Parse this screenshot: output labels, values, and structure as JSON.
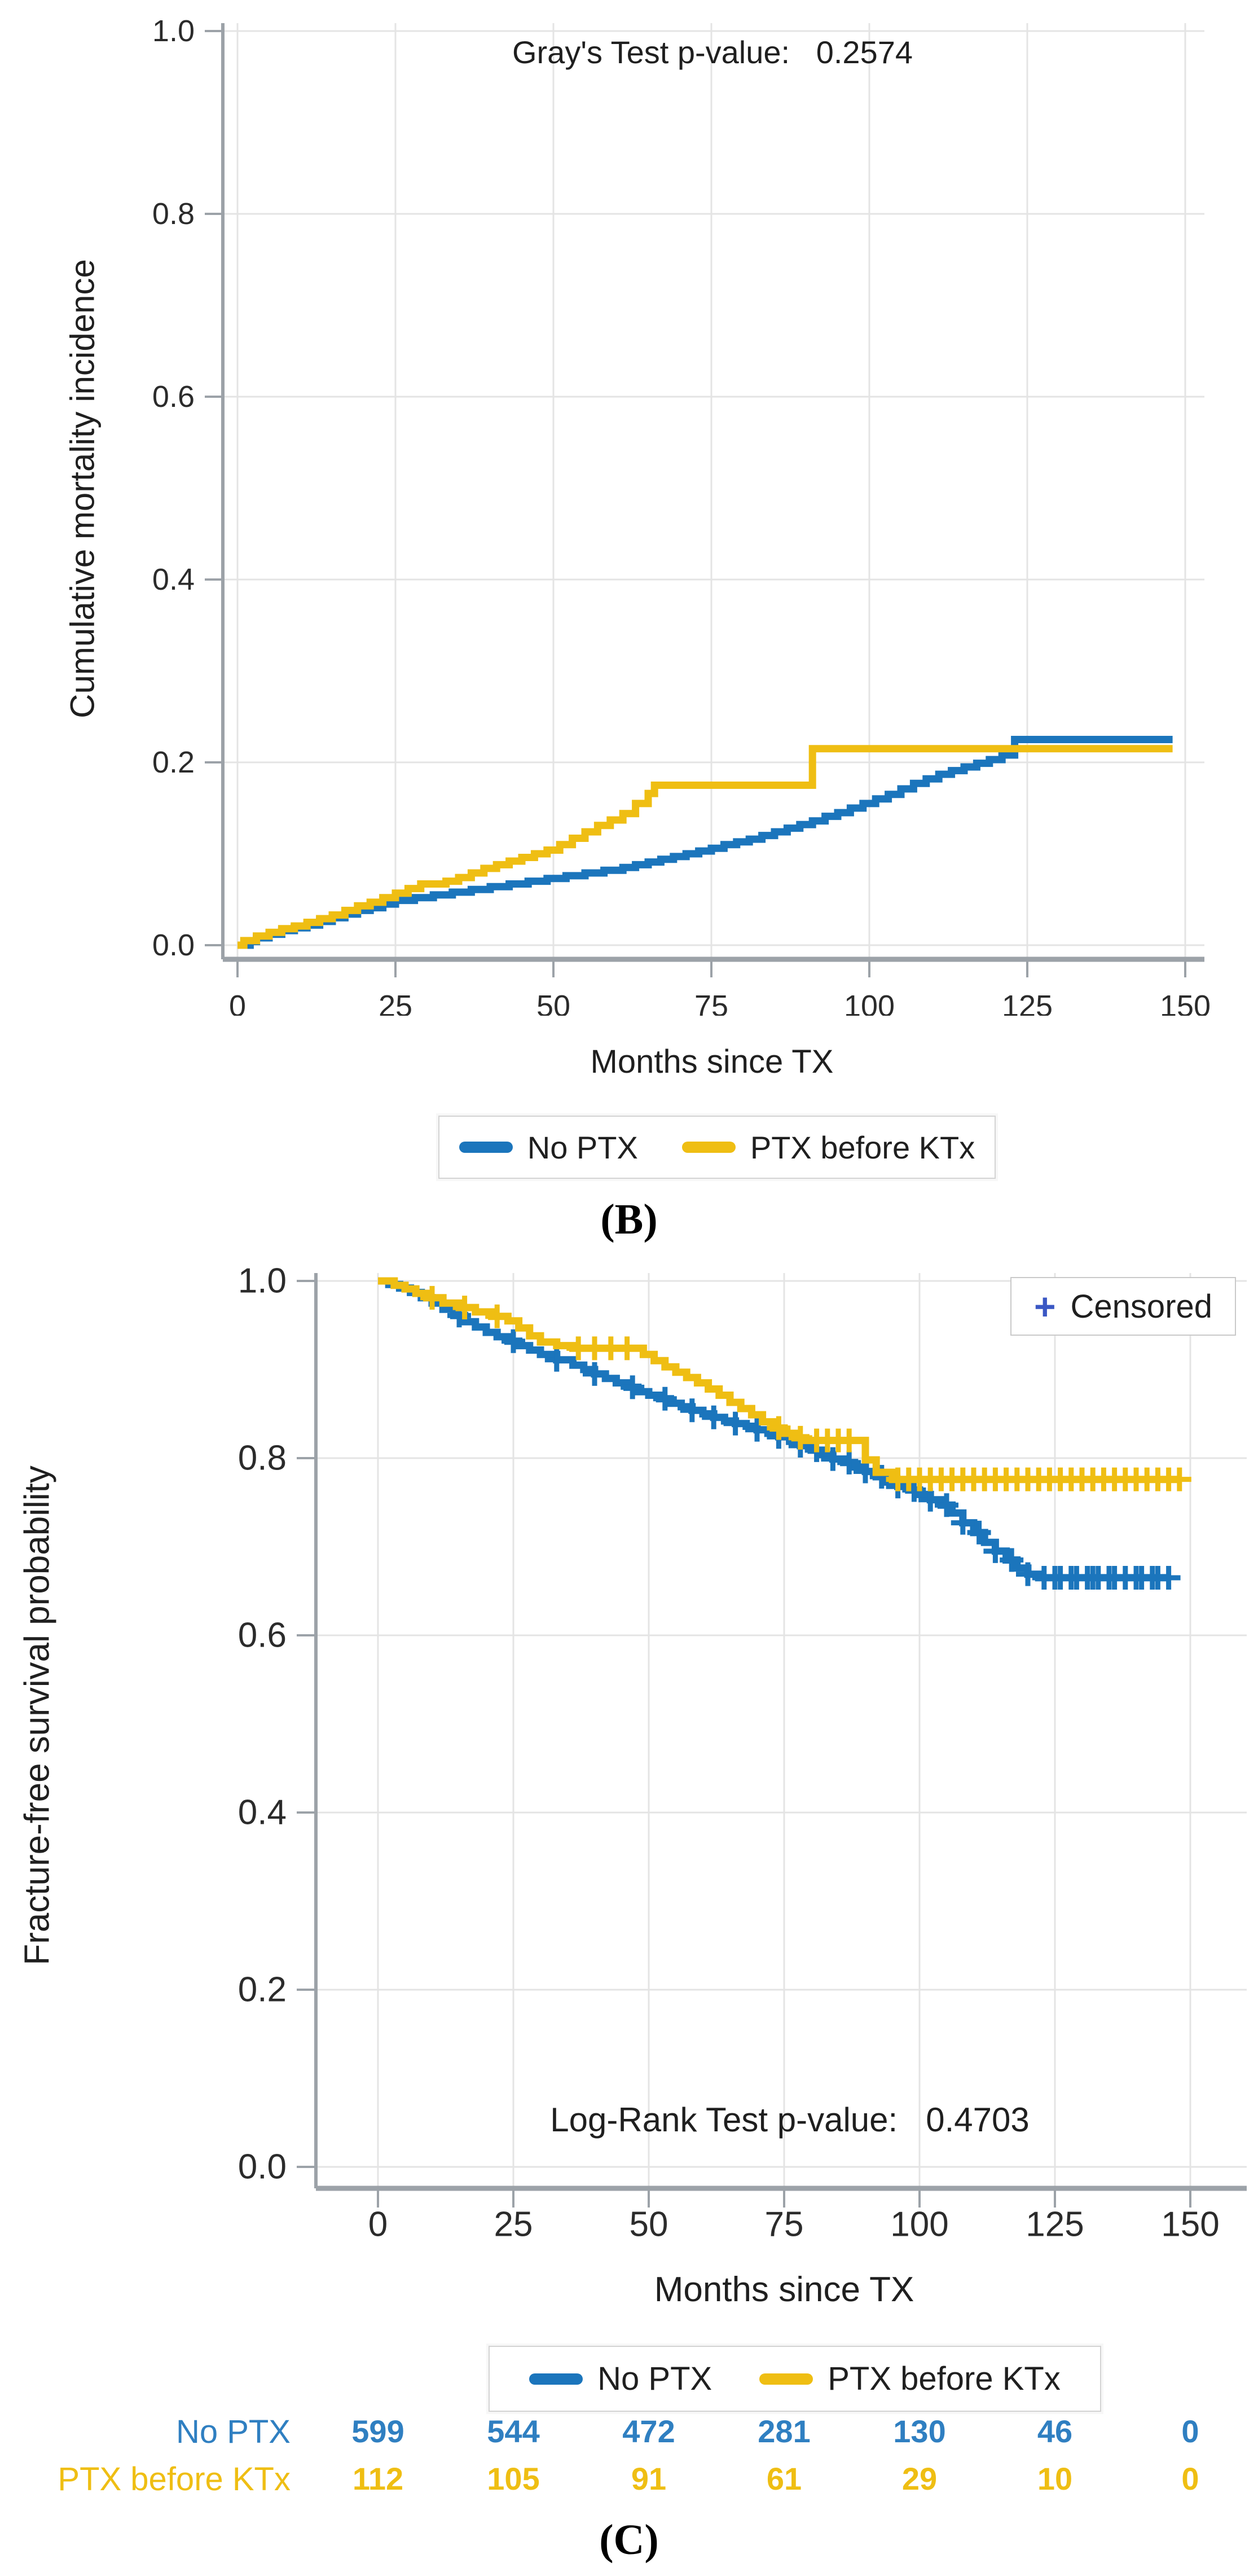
{
  "panel_b": {
    "pvalue_text": "Gray's Test p-value:   0.2574",
    "ylabel": "Cumulative mortality incidence",
    "xlabel": "Months since TX",
    "caption": "(B)",
    "legend": {
      "series1": "No PTX",
      "series2": "PTX before KTx"
    }
  },
  "panel_c": {
    "censored_marker": "+",
    "censored_label": "Censored",
    "pvalue_text": "Log-Rank Test p-value:   0.4703",
    "ylabel": "Fracture-free survival probability",
    "xlabel": "Months since TX",
    "caption": "(C)",
    "legend": {
      "series1": "No PTX",
      "series2": "PTX before KTx"
    }
  },
  "colors": {
    "no_ptx": "#1B75BC",
    "ptx_before_ktx": "#EFBE13",
    "censor_legend_plus": "#3A57C4",
    "grid": "#E4E4E4",
    "axis": "#9CA2A8",
    "tick_text": "#2b2b2b"
  },
  "chart_data": [
    {
      "id": "panel_b",
      "type": "line",
      "subtype": "step-cumulative-incidence",
      "title": "Gray's Test p-value: 0.2574",
      "xlabel": "Months since TX",
      "ylabel": "Cumulative mortality incidence",
      "xlim": [
        0,
        150
      ],
      "ylim": [
        0.0,
        1.0
      ],
      "xticks": [
        0,
        25,
        50,
        75,
        100,
        125,
        150
      ],
      "yticks": [
        "0.0",
        "0.2",
        "0.4",
        "0.6",
        "0.8",
        "1.0"
      ],
      "grid": true,
      "legend_position": "bottom",
      "series": [
        {
          "name": "No PTX",
          "color": "#1B75BC",
          "steps": [
            [
              0,
              0
            ],
            [
              2,
              0.004
            ],
            [
              3,
              0.008
            ],
            [
              5,
              0.012
            ],
            [
              7,
              0.016
            ],
            [
              9,
              0.019
            ],
            [
              11,
              0.022
            ],
            [
              13,
              0.026
            ],
            [
              15,
              0.03
            ],
            [
              17,
              0.034
            ],
            [
              19,
              0.038
            ],
            [
              21,
              0.041
            ],
            [
              23,
              0.045
            ],
            [
              25,
              0.049
            ],
            [
              28,
              0.052
            ],
            [
              31,
              0.055
            ],
            [
              34,
              0.058
            ],
            [
              37,
              0.061
            ],
            [
              40,
              0.064
            ],
            [
              43,
              0.067
            ],
            [
              46,
              0.07
            ],
            [
              49,
              0.073
            ],
            [
              52,
              0.076
            ],
            [
              55,
              0.079
            ],
            [
              58,
              0.082
            ],
            [
              61,
              0.085
            ],
            [
              63,
              0.088
            ],
            [
              65,
              0.091
            ],
            [
              67,
              0.094
            ],
            [
              69,
              0.097
            ],
            [
              71,
              0.1
            ],
            [
              73,
              0.103
            ],
            [
              75,
              0.106
            ],
            [
              77,
              0.11
            ],
            [
              79,
              0.113
            ],
            [
              81,
              0.116
            ],
            [
              83,
              0.12
            ],
            [
              85,
              0.124
            ],
            [
              87,
              0.128
            ],
            [
              89,
              0.132
            ],
            [
              91,
              0.136
            ],
            [
              93,
              0.141
            ],
            [
              95,
              0.145
            ],
            [
              97,
              0.15
            ],
            [
              99,
              0.155
            ],
            [
              101,
              0.16
            ],
            [
              103,
              0.165
            ],
            [
              105,
              0.171
            ],
            [
              107,
              0.177
            ],
            [
              109,
              0.182
            ],
            [
              111,
              0.187
            ],
            [
              113,
              0.191
            ],
            [
              115,
              0.195
            ],
            [
              117,
              0.199
            ],
            [
              119,
              0.203
            ],
            [
              121,
              0.208
            ],
            [
              123,
              0.225
            ],
            [
              148,
              0.225
            ]
          ],
          "censor_times": []
        },
        {
          "name": "PTX before KTx",
          "color": "#EFBE13",
          "steps": [
            [
              0,
              0
            ],
            [
              1,
              0.005
            ],
            [
              3,
              0.01
            ],
            [
              5,
              0.014
            ],
            [
              7,
              0.018
            ],
            [
              9,
              0.021
            ],
            [
              11,
              0.025
            ],
            [
              13,
              0.029
            ],
            [
              15,
              0.033
            ],
            [
              17,
              0.038
            ],
            [
              19,
              0.043
            ],
            [
              21,
              0.047
            ],
            [
              23,
              0.052
            ],
            [
              25,
              0.057
            ],
            [
              27,
              0.062
            ],
            [
              29,
              0.067
            ],
            [
              33,
              0.07
            ],
            [
              35,
              0.074
            ],
            [
              37,
              0.079
            ],
            [
              39,
              0.084
            ],
            [
              41,
              0.088
            ],
            [
              43,
              0.092
            ],
            [
              45,
              0.096
            ],
            [
              47,
              0.1
            ],
            [
              49,
              0.104
            ],
            [
              51,
              0.11
            ],
            [
              53,
              0.117
            ],
            [
              55,
              0.124
            ],
            [
              57,
              0.131
            ],
            [
              59,
              0.137
            ],
            [
              61,
              0.144
            ],
            [
              63,
              0.155
            ],
            [
              65,
              0.166
            ],
            [
              66,
              0.175
            ],
            [
              90,
              0.175
            ],
            [
              91,
              0.215
            ],
            [
              148,
              0.215
            ]
          ],
          "censor_times": []
        }
      ]
    },
    {
      "id": "panel_c",
      "type": "line",
      "subtype": "step-kaplan-meier",
      "title": "Log-Rank Test p-value: 0.4703",
      "xlabel": "Months since TX",
      "ylabel": "Fracture-free survival probability",
      "xlim": [
        0,
        150
      ],
      "ylim": [
        0.0,
        1.0
      ],
      "xticks": [
        0,
        25,
        50,
        75,
        100,
        125,
        150
      ],
      "yticks": [
        "0.0",
        "0.2",
        "0.4",
        "0.6",
        "0.8",
        "1.0"
      ],
      "grid": true,
      "legend_position": "bottom",
      "series": [
        {
          "name": "No PTX",
          "color": "#1B75BC",
          "steps": [
            [
              0,
              1.0
            ],
            [
              2,
              0.996
            ],
            [
              4,
              0.992
            ],
            [
              6,
              0.987
            ],
            [
              8,
              0.981
            ],
            [
              10,
              0.975
            ],
            [
              12,
              0.968
            ],
            [
              14,
              0.961
            ],
            [
              16,
              0.954
            ],
            [
              18,
              0.948
            ],
            [
              20,
              0.942
            ],
            [
              22,
              0.937
            ],
            [
              24,
              0.932
            ],
            [
              26,
              0.927
            ],
            [
              28,
              0.922
            ],
            [
              30,
              0.917
            ],
            [
              33,
              0.911
            ],
            [
              36,
              0.905
            ],
            [
              38,
              0.9
            ],
            [
              40,
              0.895
            ],
            [
              42,
              0.89
            ],
            [
              44,
              0.885
            ],
            [
              46,
              0.88
            ],
            [
              48,
              0.875
            ],
            [
              50,
              0.871
            ],
            [
              52,
              0.867
            ],
            [
              54,
              0.862
            ],
            [
              56,
              0.858
            ],
            [
              58,
              0.854
            ],
            [
              60,
              0.85
            ],
            [
              62,
              0.846
            ],
            [
              64,
              0.842
            ],
            [
              66,
              0.839
            ],
            [
              68,
              0.836
            ],
            [
              70,
              0.832
            ],
            [
              72,
              0.828
            ],
            [
              74,
              0.824
            ],
            [
              76,
              0.819
            ],
            [
              78,
              0.814
            ],
            [
              80,
              0.809
            ],
            [
              82,
              0.804
            ],
            [
              84,
              0.799
            ],
            [
              86,
              0.795
            ],
            [
              88,
              0.79
            ],
            [
              90,
              0.785
            ],
            [
              92,
              0.779
            ],
            [
              94,
              0.773
            ],
            [
              96,
              0.768
            ],
            [
              98,
              0.764
            ],
            [
              100,
              0.759
            ],
            [
              102,
              0.753
            ],
            [
              104,
              0.747
            ],
            [
              106,
              0.738
            ],
            [
              108,
              0.727
            ],
            [
              110,
              0.716
            ],
            [
              112,
              0.705
            ],
            [
              114,
              0.695
            ],
            [
              116,
              0.685
            ],
            [
              118,
              0.676
            ],
            [
              120,
              0.669
            ],
            [
              122,
              0.665
            ],
            [
              146,
              0.665
            ]
          ],
          "censor_times": [
            15,
            25,
            33,
            40,
            47,
            53,
            58,
            62,
            66,
            70,
            74,
            78,
            81,
            84,
            87,
            90,
            93,
            96,
            99,
            102,
            105,
            108,
            111,
            114,
            117,
            120,
            123,
            125,
            126,
            128,
            129,
            131,
            132,
            133,
            135,
            136,
            138,
            140,
            141,
            143,
            144,
            146
          ]
        },
        {
          "name": "PTX before KTx",
          "color": "#EFBE13",
          "steps": [
            [
              0,
              1.0
            ],
            [
              3,
              0.995
            ],
            [
              5,
              0.991
            ],
            [
              7,
              0.986
            ],
            [
              9,
              0.981
            ],
            [
              12,
              0.975
            ],
            [
              15,
              0.97
            ],
            [
              18,
              0.965
            ],
            [
              21,
              0.96
            ],
            [
              24,
              0.955
            ],
            [
              26,
              0.947
            ],
            [
              28,
              0.938
            ],
            [
              30,
              0.931
            ],
            [
              33,
              0.927
            ],
            [
              36,
              0.924
            ],
            [
              47,
              0.924
            ],
            [
              49,
              0.917
            ],
            [
              51,
              0.91
            ],
            [
              53,
              0.903
            ],
            [
              55,
              0.897
            ],
            [
              57,
              0.891
            ],
            [
              59,
              0.885
            ],
            [
              61,
              0.878
            ],
            [
              63,
              0.871
            ],
            [
              65,
              0.863
            ],
            [
              67,
              0.856
            ],
            [
              69,
              0.849
            ],
            [
              71,
              0.841
            ],
            [
              73,
              0.834
            ],
            [
              75,
              0.828
            ],
            [
              77,
              0.823
            ],
            [
              79,
              0.82
            ],
            [
              88,
              0.82
            ],
            [
              90,
              0.798
            ],
            [
              92,
              0.784
            ],
            [
              95,
              0.776
            ],
            [
              148,
              0.776
            ]
          ],
          "censor_times": [
            10,
            16,
            22,
            37,
            40,
            43,
            46,
            74,
            78,
            81,
            83,
            85,
            87,
            96,
            98,
            100,
            102,
            104,
            106,
            108,
            110,
            112,
            114,
            116,
            118,
            120,
            122,
            124,
            126,
            128,
            130,
            132,
            134,
            136,
            138,
            140,
            142,
            144,
            146,
            148
          ]
        }
      ],
      "at_risk": {
        "times": [
          0,
          25,
          50,
          75,
          100,
          125,
          150
        ],
        "rows": [
          {
            "label": "No PTX",
            "color": "#2F7FC1",
            "counts": [
              599,
              544,
              472,
              281,
              130,
              46,
              0
            ]
          },
          {
            "label": "PTX before KTx",
            "color": "#EFBE13",
            "counts": [
              112,
              105,
              91,
              61,
              29,
              10,
              0
            ]
          }
        ]
      }
    }
  ]
}
